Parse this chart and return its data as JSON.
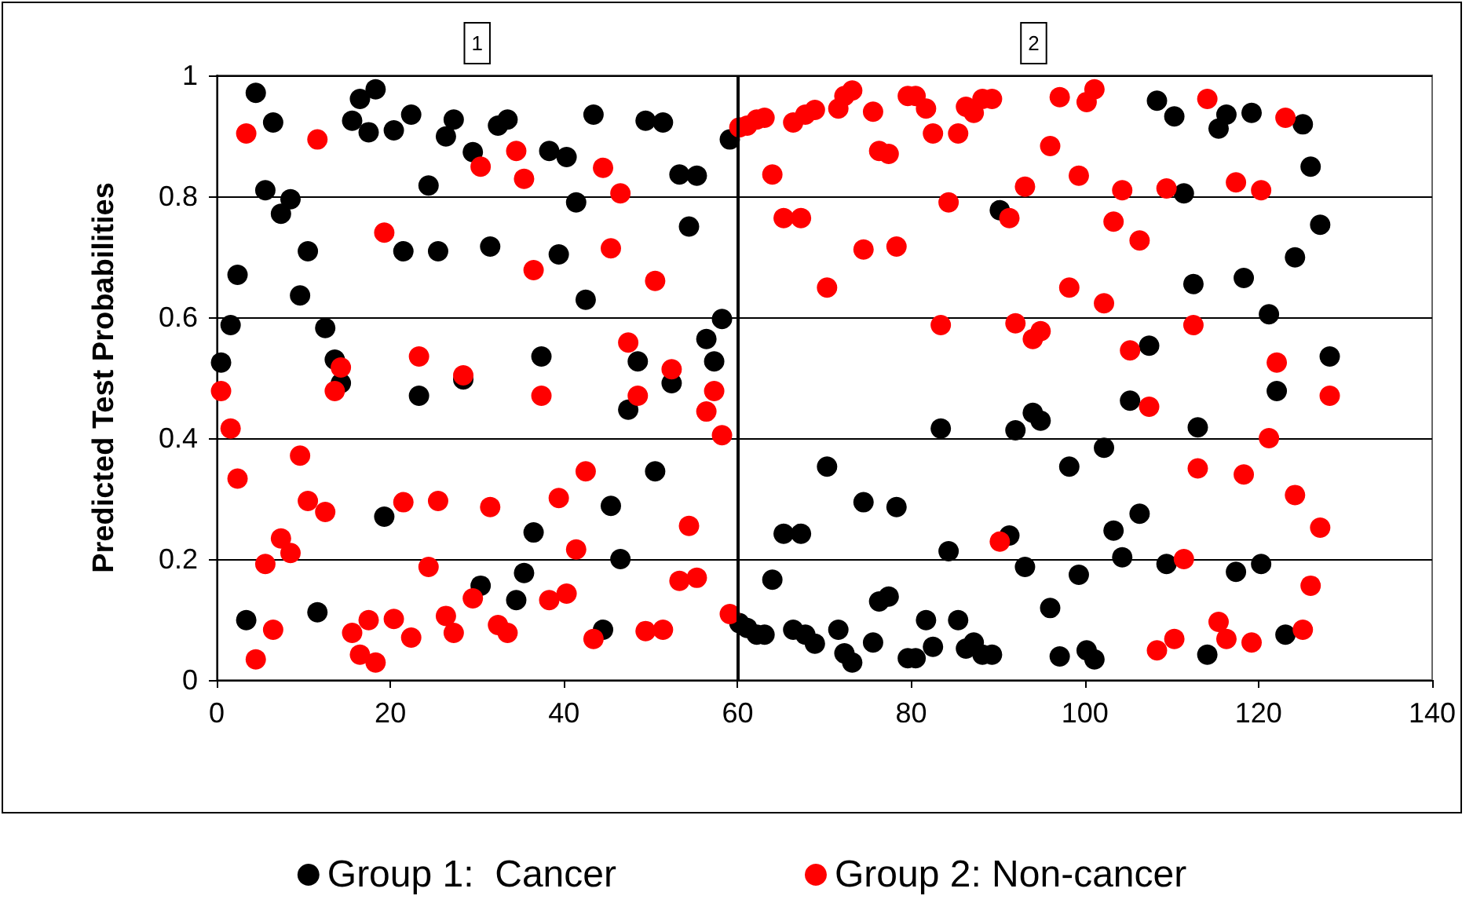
{
  "chart_data": {
    "type": "scatter",
    "ylabel": "Predicted Test Probabilities",
    "x": [
      0.5,
      1.6,
      2.4,
      3.4,
      4.5,
      5.6,
      6.5,
      7.4,
      8.5,
      9.6,
      10.5,
      11.6,
      12.5,
      13.6,
      14.3,
      15.6,
      16.5,
      17.5,
      18.3,
      19.3,
      20.4,
      21.5,
      22.4,
      23.3,
      24.4,
      25.5,
      26.4,
      27.3,
      28.4,
      29.5,
      30.4,
      31.5,
      32.4,
      33.5,
      34.5,
      35.4,
      36.5,
      37.4,
      38.3,
      39.4,
      40.3,
      41.4,
      42.5,
      43.4,
      44.5,
      45.4,
      46.5,
      47.4,
      48.5,
      49.4,
      50.5,
      51.4,
      52.4,
      53.3,
      54.4,
      55.3,
      56.4,
      57.3,
      58.2,
      59.1,
      60.2,
      61.1,
      62.2,
      63.1,
      64.0,
      65.3,
      66.4,
      67.3,
      67.8,
      68.9,
      70.3,
      71.6,
      72.3,
      73.2,
      74.5,
      75.6,
      76.3,
      77.4,
      78.3,
      79.6,
      80.5,
      81.7,
      82.5,
      83.4,
      84.3,
      85.4,
      86.3,
      87.2,
      88.2,
      89.3,
      90.2,
      91.3,
      92.0,
      93.1,
      94.0,
      94.9,
      96.0,
      97.1,
      98.2,
      99.3,
      100.2,
      101.1,
      102.2,
      103.3,
      104.3,
      105.2,
      106.3,
      107.4,
      108.3,
      109.4,
      110.3,
      111.4,
      112.5,
      113.0,
      114.1,
      115.4,
      116.3,
      117.4,
      118.3,
      119.2,
      120.3,
      121.2,
      122.1,
      123.1,
      124.2,
      125.1,
      126.0,
      127.1,
      128.2
    ],
    "series": [
      {
        "name": "Group 1:  Cancer",
        "color": "#000000",
        "values": [
          0.525,
          0.587,
          0.67,
          0.099,
          0.971,
          0.81,
          0.922,
          0.771,
          0.795,
          0.636,
          0.709,
          0.112,
          0.582,
          0.53,
          0.491,
          0.925,
          0.961,
          0.906,
          0.977,
          0.27,
          0.909,
          0.709,
          0.935,
          0.47,
          0.818,
          0.709,
          0.899,
          0.927,
          0.497,
          0.873,
          0.156,
          0.717,
          0.917,
          0.927,
          0.132,
          0.177,
          0.244,
          0.535,
          0.875,
          0.704,
          0.865,
          0.79,
          0.629,
          0.935,
          0.083,
          0.288,
          0.2,
          0.447,
          0.527,
          0.925,
          0.345,
          0.922,
          0.491,
          0.836,
          0.75,
          0.834,
          0.564,
          0.527,
          0.597,
          0.894,
          0.094,
          0.086,
          0.075,
          0.075,
          0.166,
          0.242,
          0.083,
          0.242,
          0.075,
          0.06,
          0.353,
          0.083,
          0.044,
          0.029,
          0.294,
          0.062,
          0.13,
          0.138,
          0.286,
          0.036,
          0.036,
          0.099,
          0.055,
          0.416,
          0.213,
          0.099,
          0.052,
          0.062,
          0.042,
          0.042,
          0.777,
          0.239,
          0.413,
          0.187,
          0.442,
          0.429,
          0.119,
          0.039,
          0.353,
          0.174,
          0.049,
          0.034,
          0.384,
          0.247,
          0.203,
          0.462,
          0.275,
          0.553,
          0.958,
          0.192,
          0.932,
          0.805,
          0.655,
          0.418,
          0.042,
          0.912,
          0.935,
          0.179,
          0.665,
          0.938,
          0.192,
          0.605,
          0.478,
          0.075,
          0.699,
          0.919,
          0.849,
          0.753,
          0.535
        ]
      },
      {
        "name": "Group 2: Non-cancer",
        "color": "#ff0000",
        "values": [
          0.478,
          0.416,
          0.333,
          0.904,
          0.034,
          0.192,
          0.083,
          0.234,
          0.21,
          0.371,
          0.296,
          0.894,
          0.278,
          0.478,
          0.517,
          0.078,
          0.042,
          0.099,
          0.029,
          0.74,
          0.101,
          0.294,
          0.07,
          0.535,
          0.187,
          0.296,
          0.106,
          0.078,
          0.504,
          0.135,
          0.849,
          0.286,
          0.091,
          0.078,
          0.875,
          0.829,
          0.678,
          0.47,
          0.132,
          0.301,
          0.143,
          0.216,
          0.345,
          0.068,
          0.847,
          0.714,
          0.805,
          0.558,
          0.47,
          0.081,
          0.66,
          0.083,
          0.514,
          0.164,
          0.255,
          0.169,
          0.444,
          0.478,
          0.405,
          0.109,
          0.914,
          0.917,
          0.927,
          0.93,
          0.836,
          0.764,
          0.922,
          0.764,
          0.935,
          0.943,
          0.649,
          0.945,
          0.966,
          0.975,
          0.712,
          0.94,
          0.875,
          0.87,
          0.717,
          0.966,
          0.966,
          0.945,
          0.904,
          0.587,
          0.79,
          0.904,
          0.948,
          0.938,
          0.961,
          0.961,
          0.229,
          0.764,
          0.59,
          0.816,
          0.564,
          0.577,
          0.883,
          0.964,
          0.649,
          0.834,
          0.956,
          0.977,
          0.623,
          0.758,
          0.81,
          0.545,
          0.727,
          0.452,
          0.049,
          0.813,
          0.068,
          0.2,
          0.587,
          0.35,
          0.961,
          0.096,
          0.068,
          0.823,
          0.34,
          0.062,
          0.81,
          0.4,
          0.525,
          0.93,
          0.306,
          0.083,
          0.156,
          0.252,
          0.47
        ]
      }
    ],
    "xlim": [
      0,
      140
    ],
    "xticks": [
      0,
      20,
      40,
      60,
      80,
      100,
      120,
      140
    ],
    "ylim": [
      0,
      1
    ],
    "yticks": [
      0,
      0.2,
      0.4,
      0.6,
      0.8,
      1
    ],
    "ref_lines": [
      {
        "axis": "x",
        "value": 60,
        "color": "#000000"
      }
    ],
    "annotations": [
      "1",
      "2"
    ],
    "grid": "y",
    "legend": "bottom",
    "marker": "circle"
  }
}
